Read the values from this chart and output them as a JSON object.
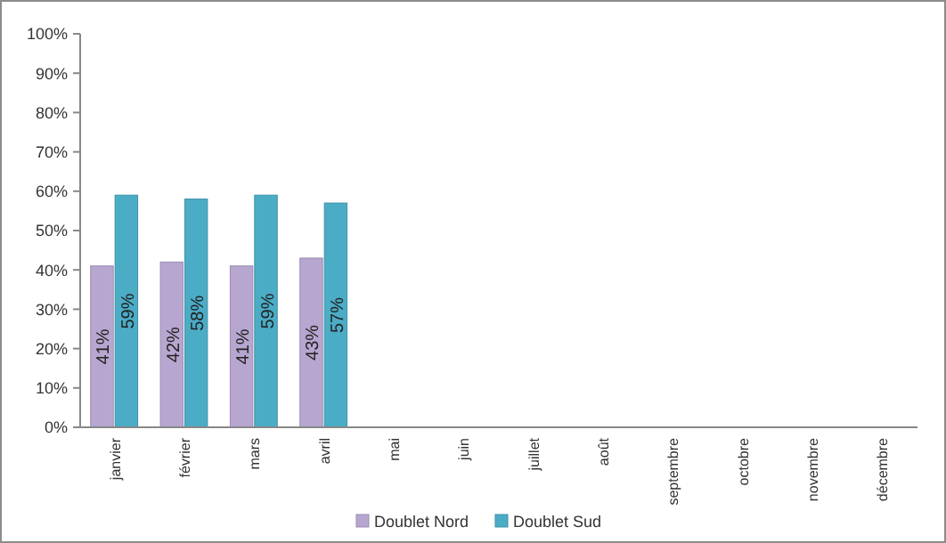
{
  "chart_data": {
    "type": "bar",
    "categories": [
      "janvier",
      "février",
      "mars",
      "avril",
      "mai",
      "juin",
      "juillet",
      "août",
      "septembre",
      "octobre",
      "novembre",
      "décembre"
    ],
    "series": [
      {
        "name": "Doublet Nord",
        "color": "#b7a6d0",
        "values": [
          41,
          42,
          41,
          43,
          null,
          null,
          null,
          null,
          null,
          null,
          null,
          null
        ],
        "value_labels": [
          "41%",
          "42%",
          "41%",
          "43%",
          null,
          null,
          null,
          null,
          null,
          null,
          null,
          null
        ]
      },
      {
        "name": "Doublet Sud",
        "color": "#4bacc6",
        "values": [
          59,
          58,
          59,
          57,
          null,
          null,
          null,
          null,
          null,
          null,
          null,
          null
        ],
        "value_labels": [
          "59%",
          "58%",
          "59%",
          "57%",
          null,
          null,
          null,
          null,
          null,
          null,
          null,
          null
        ]
      }
    ],
    "ylim": [
      0,
      100
    ],
    "yticks": [
      {
        "value": 0,
        "label": "0%"
      },
      {
        "value": 10,
        "label": "10%"
      },
      {
        "value": 20,
        "label": "20%"
      },
      {
        "value": 30,
        "label": "30%"
      },
      {
        "value": 40,
        "label": "40%"
      },
      {
        "value": 50,
        "label": "50%"
      },
      {
        "value": 60,
        "label": "60%"
      },
      {
        "value": 70,
        "label": "70%"
      },
      {
        "value": 80,
        "label": "80%"
      },
      {
        "value": 90,
        "label": "90%"
      },
      {
        "value": 100,
        "label": "100%"
      }
    ],
    "legend": "bottom"
  }
}
